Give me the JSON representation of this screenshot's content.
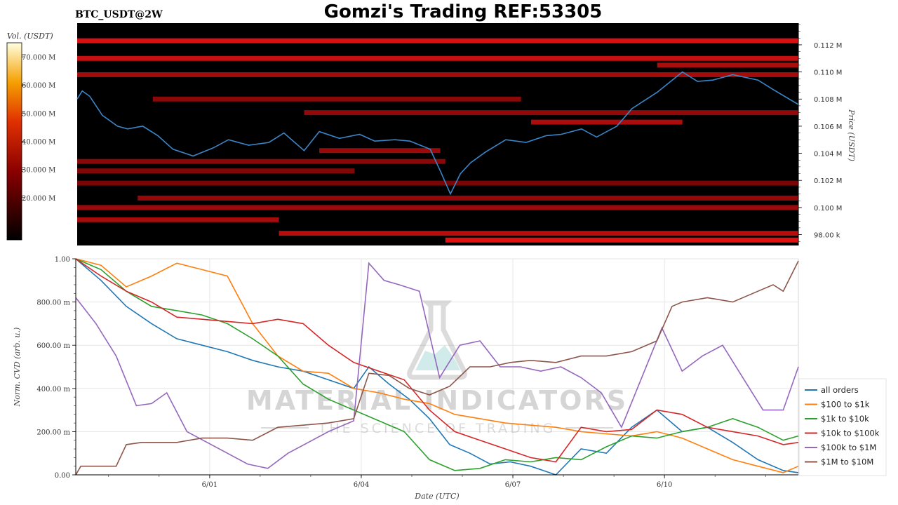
{
  "symbol_label": "BTC_USDT@2W",
  "title": "Gomzi's Trading REF:53305",
  "watermark": {
    "line1": "MATERIAL INDICATORS",
    "line2": "THE SCIENCE OF TRADING"
  },
  "colorbar": {
    "label": "Vol. (USDT)",
    "ticks": [
      "20.000 M",
      "30.000 M",
      "40.000 M",
      "50.000 M",
      "60.000 M",
      "70.000 M"
    ],
    "tick_values": [
      20,
      30,
      40,
      50,
      60,
      70
    ],
    "range": [
      5,
      75
    ]
  },
  "colors": {
    "price_line": "#3a86c8",
    "heat_bg": "#000000",
    "heat_low": "#5a0000",
    "heat_high": "#e01010"
  },
  "chart_data": [
    {
      "type": "heatmap",
      "name_hidden": true,
      "ylabel": "Price (USDT)",
      "y_ticks": [
        "98.00 k",
        "0.100 M",
        "0.102 M",
        "0.104 M",
        "0.106 M",
        "0.108 M",
        "0.110 M",
        "0.112 M"
      ],
      "y_tick_values": [
        98000,
        100000,
        102000,
        104000,
        106000,
        108000,
        110000,
        112000
      ],
      "ylim": [
        97200,
        113600
      ],
      "xlim_days": [
        0,
        14.3
      ],
      "price_series": {
        "x": [
          0,
          0.1,
          0.25,
          0.5,
          0.8,
          1.0,
          1.3,
          1.6,
          1.9,
          2.3,
          2.7,
          3.0,
          3.4,
          3.8,
          4.1,
          4.5,
          4.8,
          5.2,
          5.6,
          5.9,
          6.3,
          6.6,
          7.0,
          7.2,
          7.4,
          7.6,
          7.8,
          8.1,
          8.5,
          8.9,
          9.3,
          9.6,
          10.0,
          10.3,
          10.7,
          11.0,
          11.5,
          12.0,
          12.3,
          12.6,
          13.0,
          13.5,
          13.8,
          14.3
        ],
        "y": [
          108000,
          108600,
          108200,
          106800,
          106000,
          105800,
          106000,
          105300,
          104300,
          103800,
          104400,
          105000,
          104600,
          104800,
          105500,
          104200,
          105600,
          105100,
          105400,
          104900,
          105000,
          104900,
          104300,
          102700,
          101000,
          102500,
          103300,
          104100,
          105000,
          104800,
          105300,
          105400,
          105800,
          105200,
          106000,
          107300,
          108500,
          110000,
          109300,
          109400,
          109800,
          109400,
          108700,
          107600
        ]
      },
      "bands": [
        {
          "price": 112300,
          "start": 0.0,
          "end": 14.3,
          "level": 0.85
        },
        {
          "price": 111000,
          "start": 0.0,
          "end": 14.3,
          "level": 0.75
        },
        {
          "price": 109800,
          "start": 0.0,
          "end": 14.3,
          "level": 0.55
        },
        {
          "price": 110500,
          "start": 11.5,
          "end": 14.3,
          "level": 0.6
        },
        {
          "price": 108000,
          "start": 1.5,
          "end": 8.8,
          "level": 0.4
        },
        {
          "price": 107000,
          "start": 4.5,
          "end": 14.3,
          "level": 0.45
        },
        {
          "price": 106300,
          "start": 9.0,
          "end": 12.0,
          "level": 0.6
        },
        {
          "price": 104200,
          "start": 4.8,
          "end": 7.2,
          "level": 0.5
        },
        {
          "price": 103400,
          "start": 0.0,
          "end": 7.3,
          "level": 0.4
        },
        {
          "price": 102700,
          "start": 0.0,
          "end": 5.5,
          "level": 0.35
        },
        {
          "price": 101800,
          "start": 0.0,
          "end": 14.3,
          "level": 0.3
        },
        {
          "price": 100700,
          "start": 1.2,
          "end": 14.3,
          "level": 0.45
        },
        {
          "price": 100000,
          "start": 0.0,
          "end": 14.3,
          "level": 0.5
        },
        {
          "price": 99100,
          "start": 0.0,
          "end": 4.0,
          "level": 0.55
        },
        {
          "price": 98100,
          "start": 4.0,
          "end": 14.3,
          "level": 0.65
        },
        {
          "price": 97600,
          "start": 7.3,
          "end": 14.3,
          "level": 0.9
        }
      ]
    },
    {
      "type": "line",
      "xlabel": "Date (UTC)",
      "ylabel": "Norm. CVD (arb. u.)",
      "ylim": [
        0,
        1
      ],
      "y_ticks": [
        "0.00",
        "200.00 m",
        "400.00 m",
        "600.00 m",
        "800.00 m",
        "1.00"
      ],
      "y_tick_values": [
        0,
        0.2,
        0.4,
        0.6,
        0.8,
        1.0
      ],
      "x_ticks": [
        "6/01",
        "6/04",
        "6/07",
        "6/10"
      ],
      "x_tick_days": [
        2.65,
        5.65,
        8.65,
        11.65
      ],
      "xlim_days": [
        0,
        14.3
      ],
      "legend_position": "right",
      "series": [
        {
          "name": "all orders",
          "color": "#1f77b4",
          "x": [
            0,
            0.5,
            1.0,
            1.5,
            2.0,
            2.5,
            3.0,
            3.5,
            4.0,
            4.5,
            5.0,
            5.5,
            5.8,
            6.2,
            6.6,
            7.0,
            7.4,
            7.8,
            8.2,
            8.6,
            9.0,
            9.5,
            10.0,
            10.5,
            11.0,
            11.5,
            12.0,
            12.5,
            13.0,
            13.5,
            14.0,
            14.3
          ],
          "y": [
            1.0,
            0.9,
            0.78,
            0.7,
            0.63,
            0.6,
            0.57,
            0.53,
            0.5,
            0.48,
            0.44,
            0.4,
            0.5,
            0.42,
            0.35,
            0.26,
            0.14,
            0.1,
            0.05,
            0.06,
            0.04,
            0.0,
            0.12,
            0.1,
            0.22,
            0.3,
            0.2,
            0.22,
            0.15,
            0.07,
            0.02,
            0.01
          ]
        },
        {
          "name": "$100 to $1k",
          "color": "#ff7f0e",
          "x": [
            0,
            0.5,
            1.0,
            1.5,
            2.0,
            2.5,
            3.0,
            3.5,
            4.0,
            4.5,
            5.0,
            5.5,
            6.0,
            6.5,
            7.0,
            7.5,
            8.0,
            8.5,
            9.0,
            9.5,
            10.0,
            10.5,
            11.0,
            11.5,
            12.0,
            12.5,
            13.0,
            13.5,
            14.0,
            14.3
          ],
          "y": [
            1.0,
            0.97,
            0.87,
            0.92,
            0.98,
            0.95,
            0.92,
            0.7,
            0.55,
            0.48,
            0.47,
            0.4,
            0.38,
            0.35,
            0.33,
            0.28,
            0.26,
            0.24,
            0.23,
            0.22,
            0.2,
            0.19,
            0.18,
            0.2,
            0.17,
            0.12,
            0.07,
            0.04,
            0.01,
            0.04
          ]
        },
        {
          "name": "$1k to $10k",
          "color": "#2ca02c",
          "x": [
            0,
            0.5,
            1.0,
            1.5,
            2.0,
            2.5,
            3.0,
            3.5,
            4.0,
            4.5,
            5.0,
            5.5,
            6.0,
            6.5,
            7.0,
            7.5,
            8.0,
            8.5,
            9.0,
            9.5,
            10.0,
            10.5,
            11.0,
            11.5,
            12.0,
            12.5,
            13.0,
            13.5,
            14.0,
            14.3
          ],
          "y": [
            1.0,
            0.95,
            0.85,
            0.78,
            0.76,
            0.74,
            0.7,
            0.63,
            0.55,
            0.42,
            0.35,
            0.3,
            0.25,
            0.2,
            0.07,
            0.02,
            0.03,
            0.07,
            0.06,
            0.08,
            0.07,
            0.13,
            0.18,
            0.17,
            0.2,
            0.22,
            0.26,
            0.22,
            0.16,
            0.18
          ]
        },
        {
          "name": "$10k to $100k",
          "color": "#d62728",
          "x": [
            0,
            0.5,
            1.0,
            1.5,
            2.0,
            2.5,
            3.0,
            3.5,
            4.0,
            4.5,
            5.0,
            5.5,
            6.0,
            6.5,
            7.0,
            7.5,
            8.0,
            8.5,
            9.0,
            9.5,
            10.0,
            10.5,
            11.0,
            11.5,
            12.0,
            12.5,
            13.0,
            13.5,
            14.0,
            14.3
          ],
          "y": [
            1.0,
            0.92,
            0.85,
            0.8,
            0.73,
            0.72,
            0.71,
            0.7,
            0.72,
            0.7,
            0.6,
            0.52,
            0.48,
            0.44,
            0.3,
            0.2,
            0.16,
            0.12,
            0.08,
            0.06,
            0.22,
            0.2,
            0.21,
            0.3,
            0.28,
            0.22,
            0.2,
            0.18,
            0.14,
            0.15
          ]
        },
        {
          "name": "$100k to $1M",
          "color": "#9467bd",
          "x": [
            0,
            0.4,
            0.8,
            1.2,
            1.5,
            1.8,
            2.2,
            2.6,
            3.0,
            3.4,
            3.8,
            4.2,
            4.6,
            5.0,
            5.5,
            5.8,
            6.1,
            6.4,
            6.8,
            7.2,
            7.6,
            8.0,
            8.4,
            8.8,
            9.2,
            9.6,
            10.0,
            10.4,
            10.8,
            11.2,
            11.6,
            12.0,
            12.4,
            12.8,
            13.2,
            13.6,
            14.0,
            14.3
          ],
          "y": [
            0.82,
            0.7,
            0.55,
            0.32,
            0.33,
            0.38,
            0.2,
            0.15,
            0.1,
            0.05,
            0.03,
            0.1,
            0.15,
            0.2,
            0.25,
            0.98,
            0.9,
            0.88,
            0.85,
            0.45,
            0.6,
            0.62,
            0.5,
            0.5,
            0.48,
            0.5,
            0.45,
            0.38,
            0.22,
            0.45,
            0.68,
            0.48,
            0.55,
            0.6,
            0.45,
            0.3,
            0.3,
            0.5
          ]
        },
        {
          "name": "$1M to $10M",
          "color": "#8c564b",
          "x": [
            0,
            0.1,
            0.8,
            1.0,
            1.3,
            1.6,
            2.0,
            2.5,
            3.0,
            3.5,
            4.0,
            4.5,
            5.0,
            5.5,
            5.8,
            6.2,
            6.6,
            7.0,
            7.4,
            7.8,
            8.2,
            8.6,
            9.0,
            9.5,
            10.0,
            10.5,
            11.0,
            11.5,
            11.8,
            12.0,
            12.5,
            13.0,
            13.5,
            13.8,
            14.0,
            14.3
          ],
          "y": [
            0.0,
            0.04,
            0.04,
            0.14,
            0.15,
            0.15,
            0.15,
            0.17,
            0.17,
            0.16,
            0.22,
            0.23,
            0.24,
            0.26,
            0.47,
            0.46,
            0.4,
            0.37,
            0.41,
            0.5,
            0.5,
            0.52,
            0.53,
            0.52,
            0.55,
            0.55,
            0.57,
            0.62,
            0.78,
            0.8,
            0.82,
            0.8,
            0.85,
            0.88,
            0.85,
            0.99
          ]
        }
      ]
    }
  ]
}
